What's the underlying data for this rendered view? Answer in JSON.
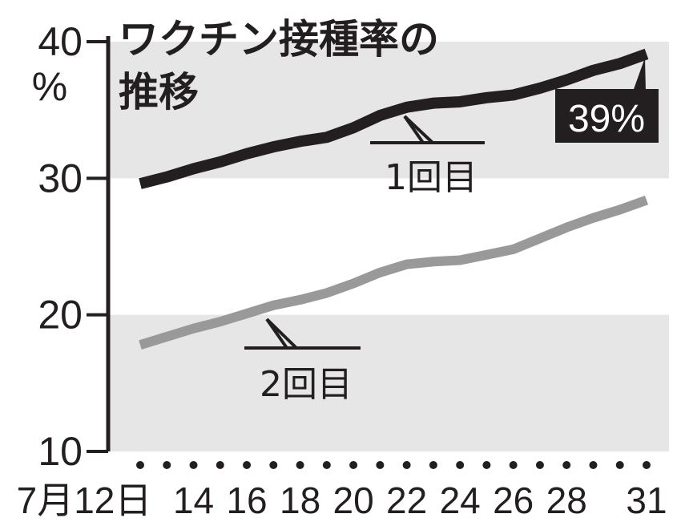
{
  "chart_data": {
    "type": "line",
    "title": "ワクチン接種率の推移",
    "title_lines": [
      "ワクチン接種率の",
      "推移"
    ],
    "ylabel": "%",
    "ylim": [
      10,
      40
    ],
    "yticks": [
      "40",
      "30",
      "20",
      "10"
    ],
    "xlim": [
      12,
      31
    ],
    "xticks": [
      {
        "day": 12,
        "label": "7月12日"
      },
      {
        "day": 14,
        "label": "14"
      },
      {
        "day": 16,
        "label": "16"
      },
      {
        "day": 18,
        "label": "18"
      },
      {
        "day": 20,
        "label": "20"
      },
      {
        "day": 22,
        "label": "22"
      },
      {
        "day": 24,
        "label": "24"
      },
      {
        "day": 26,
        "label": "26"
      },
      {
        "day": 28,
        "label": "28"
      },
      {
        "day": 31,
        "label": "31"
      }
    ],
    "x": [
      12,
      13,
      14,
      15,
      16,
      17,
      18,
      19,
      20,
      21,
      22,
      23,
      24,
      25,
      26,
      27,
      28,
      29,
      30,
      31
    ],
    "series": [
      {
        "name": "1回目",
        "color": "#231f20",
        "values": [
          29.6,
          30.1,
          30.7,
          31.2,
          31.8,
          32.3,
          32.7,
          33.0,
          33.7,
          34.6,
          35.2,
          35.5,
          35.6,
          35.9,
          36.1,
          36.6,
          37.2,
          37.9,
          38.4,
          39.1
        ]
      },
      {
        "name": "2回目",
        "color": "#999999",
        "values": [
          17.8,
          18.4,
          19.0,
          19.5,
          20.1,
          20.7,
          21.1,
          21.6,
          22.3,
          23.1,
          23.7,
          23.9,
          24.0,
          24.4,
          24.8,
          25.6,
          26.4,
          27.1,
          27.7,
          28.4
        ]
      }
    ],
    "annotation": "39%",
    "bands": [
      [
        30,
        40
      ],
      [
        10,
        20
      ]
    ],
    "band_color": "#e6e6e6",
    "grid": false,
    "legend": "inline labels"
  }
}
